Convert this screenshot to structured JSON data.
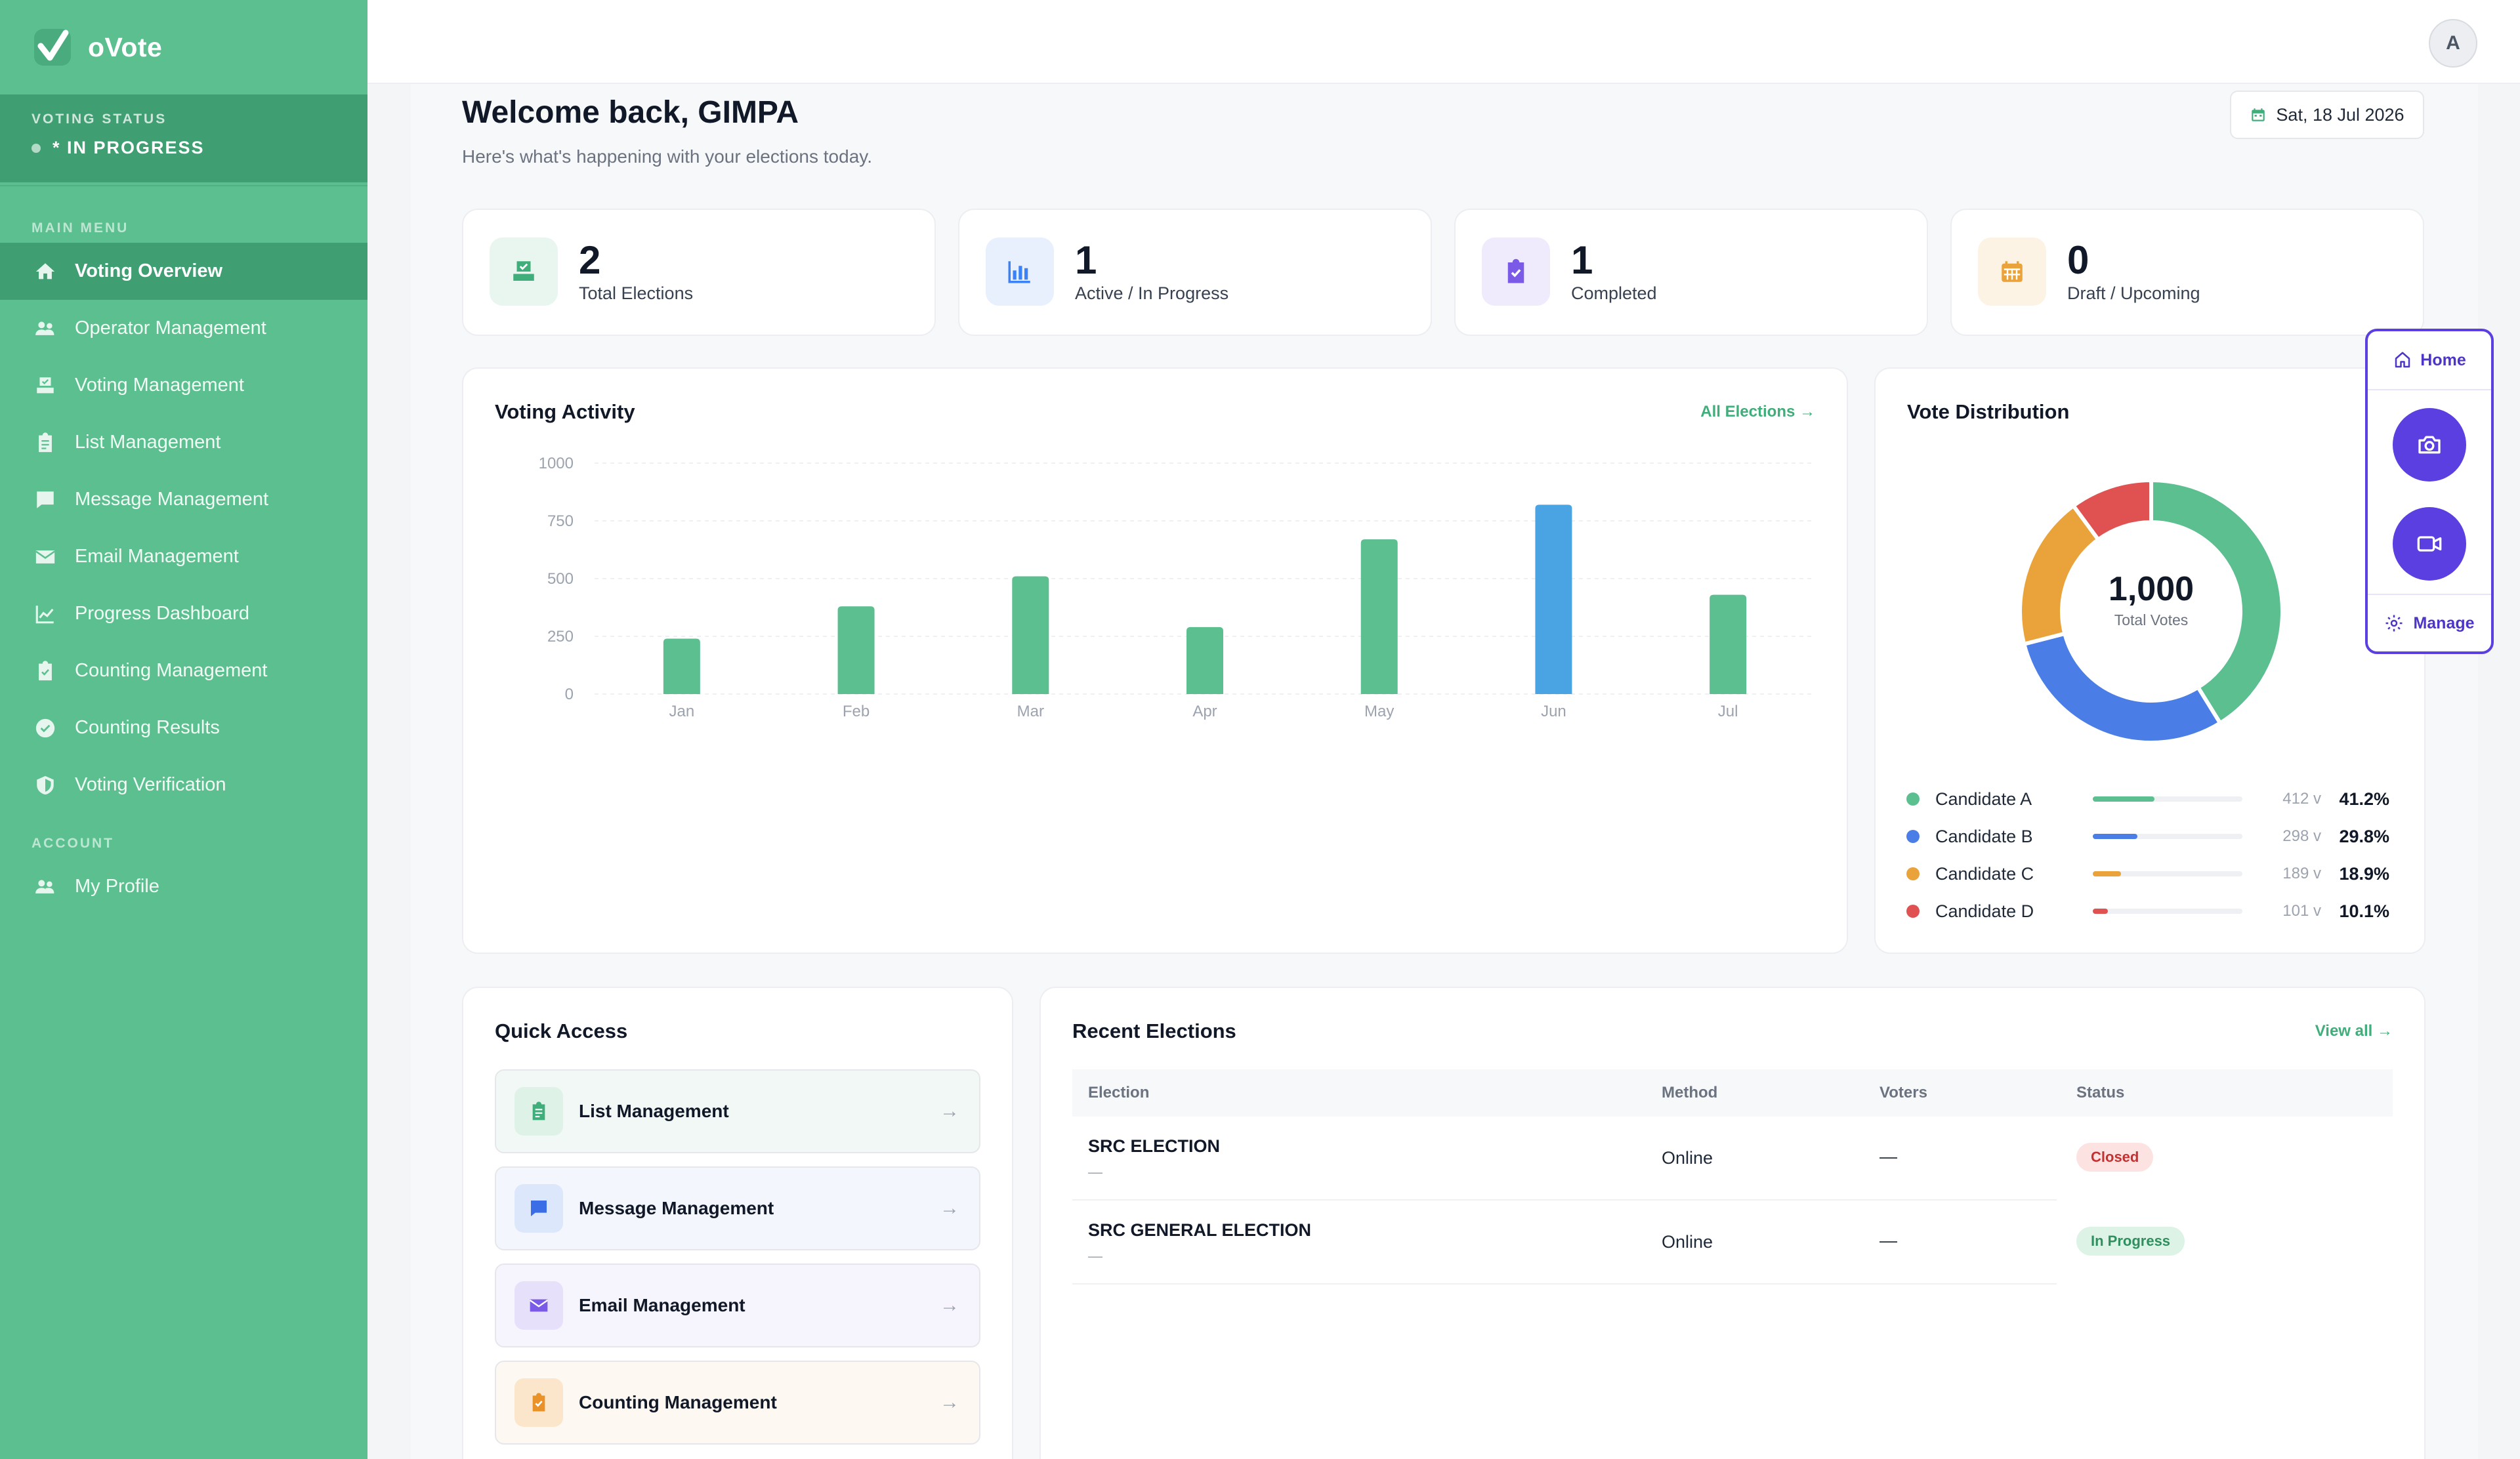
{
  "app": {
    "name": "oVote"
  },
  "sidebar": {
    "status_label": "VOTING STATUS",
    "status_value": "* IN PROGRESS",
    "main_menu_label": "MAIN MENU",
    "items": [
      {
        "label": "Voting Overview",
        "icon": "home-icon"
      },
      {
        "label": "Operator Management",
        "icon": "users-icon"
      },
      {
        "label": "Voting Management",
        "icon": "ballot-icon"
      },
      {
        "label": "List Management",
        "icon": "clipboard-icon"
      },
      {
        "label": "Message Management",
        "icon": "chat-icon"
      },
      {
        "label": "Email Management",
        "icon": "envelope-icon"
      },
      {
        "label": "Progress Dashboard",
        "icon": "chart-line-icon"
      },
      {
        "label": "Counting Management",
        "icon": "clipboard-check-icon"
      },
      {
        "label": "Counting Results",
        "icon": "check-circle-icon"
      },
      {
        "label": "Voting Verification",
        "icon": "shield-icon"
      }
    ],
    "account_label": "ACCOUNT",
    "account_items": [
      {
        "label": "My Profile",
        "icon": "users-icon"
      }
    ]
  },
  "header": {
    "avatar_initial": "A"
  },
  "welcome": {
    "title": "Welcome back, GIMPA",
    "subtitle": "Here's what's happening with your elections today.",
    "date": "Sat, 18 Jul 2026"
  },
  "stats": [
    {
      "value": "2",
      "label": "Total Elections",
      "color": "#3fae7a",
      "bg": "#e8f6ef"
    },
    {
      "value": "1",
      "label": "Active / In Progress",
      "color": "#3b82f6",
      "bg": "#e8f0fd"
    },
    {
      "value": "1",
      "label": "Completed",
      "color": "#7c5ae8",
      "bg": "#efeafc"
    },
    {
      "value": "0",
      "label": "Draft / Upcoming",
      "color": "#eaa23a",
      "bg": "#fdf3e4"
    }
  ],
  "activity": {
    "title": "Voting Activity",
    "link": "All Elections →"
  },
  "distribution": {
    "title": "Vote Distribution",
    "total": "1,000",
    "total_label": "Total Votes",
    "candidates": [
      {
        "name": "Candidate A",
        "votes": "412 v",
        "pct": "41.2%",
        "fraction": 0.412,
        "color": "#5bbf90"
      },
      {
        "name": "Candidate B",
        "votes": "298 v",
        "pct": "29.8%",
        "fraction": 0.298,
        "color": "#4a7ee6"
      },
      {
        "name": "Candidate C",
        "votes": "189 v",
        "pct": "18.9%",
        "fraction": 0.189,
        "color": "#eaa23a"
      },
      {
        "name": "Candidate D",
        "votes": "101 v",
        "pct": "10.1%",
        "fraction": 0.101,
        "color": "#e05252"
      }
    ]
  },
  "widget": {
    "home_label": "Home",
    "manage_label": "Manage"
  },
  "quick_access": {
    "title": "Quick Access",
    "items": [
      {
        "label": "List Management",
        "color": "#3fae7a",
        "bg": "#f2f8f5",
        "icon_bg": "#dff2e8"
      },
      {
        "label": "Message Management",
        "color": "#3b6ee6",
        "bg": "#f3f6fd",
        "icon_bg": "#dde7fb"
      },
      {
        "label": "Email Management",
        "color": "#7c5ae8",
        "bg": "#f6f4fd",
        "icon_bg": "#e7e0fa"
      },
      {
        "label": "Counting Management",
        "color": "#e9922a",
        "bg": "#fdf8f1",
        "icon_bg": "#fbe6cc"
      }
    ],
    "arrow": "→"
  },
  "recent": {
    "title": "Recent Elections",
    "link": "View all →",
    "columns": [
      "Election",
      "Method",
      "Voters",
      "Status"
    ],
    "rows": [
      {
        "name": "SRC ELECTION",
        "sub": "—",
        "method": "Online",
        "voters": "—",
        "status": "Closed",
        "status_color": "#c53030",
        "status_bg": "#fde2e2"
      },
      {
        "name": "SRC GENERAL ELECTION",
        "sub": "—",
        "method": "Online",
        "voters": "—",
        "status": "In Progress",
        "status_color": "#2f8f5f",
        "status_bg": "#dcf3e6"
      }
    ]
  },
  "chart_data": {
    "type": "bar",
    "title": "Voting Activity",
    "categories": [
      "Jan",
      "Feb",
      "Mar",
      "Apr",
      "May",
      "Jun",
      "Jul"
    ],
    "values": [
      240,
      380,
      510,
      290,
      670,
      820,
      430
    ],
    "highlight_index": 5,
    "bar_color": "#5bbf90",
    "highlight_color": "#4aa3e3",
    "ylim": [
      0,
      1000
    ],
    "yticks": [
      "1000",
      "750",
      "500",
      "250",
      "0"
    ],
    "grid": true
  }
}
